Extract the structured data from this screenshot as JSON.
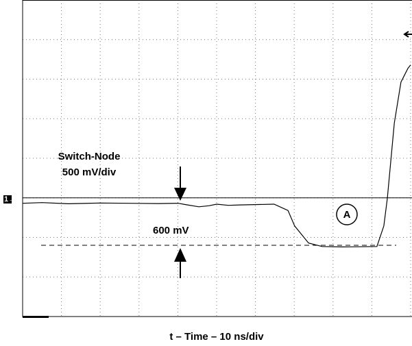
{
  "chart_data": {
    "type": "line",
    "channel_marker": "1→",
    "annotations": [
      "Switch-Node",
      "500 mV/div",
      "600 mV",
      "A"
    ],
    "xlabel": "t – Time – 10 ns/div",
    "xlim": [
      0,
      100
    ],
    "xticks": [
      0,
      10,
      20,
      30,
      40,
      50,
      60,
      70,
      80,
      90,
      100
    ],
    "ylim": [
      -1500,
      2500
    ],
    "yticks": [
      -1500,
      -1000,
      -500,
      0,
      500,
      1000,
      1500,
      2000,
      2500
    ],
    "grid": true,
    "hlines": [
      {
        "value": 0,
        "style": "solid"
      },
      {
        "value": -600,
        "style": "dashed"
      }
    ],
    "series": [
      {
        "color": "#000000",
        "x": [
          0,
          5,
          11.8,
          20,
          29.5,
          35,
          40.1,
          42,
          45.4,
          48,
          50,
          53,
          56,
          64.8,
          68.4,
          70.1,
          73.7,
          77.2,
          82.5,
          91.3,
          93.1,
          94,
          95.8,
          97.5,
          99.3,
          100
        ],
        "values": [
          -69,
          -60,
          -75,
          -65,
          -70,
          -72,
          -69,
          -85,
          -113,
          -100,
          -80,
          -95,
          -90,
          -80,
          -160,
          -355,
          -571,
          -615,
          -620,
          -615,
          -355,
          -9,
          944,
          1463,
          1636,
          1680
        ]
      }
    ]
  }
}
